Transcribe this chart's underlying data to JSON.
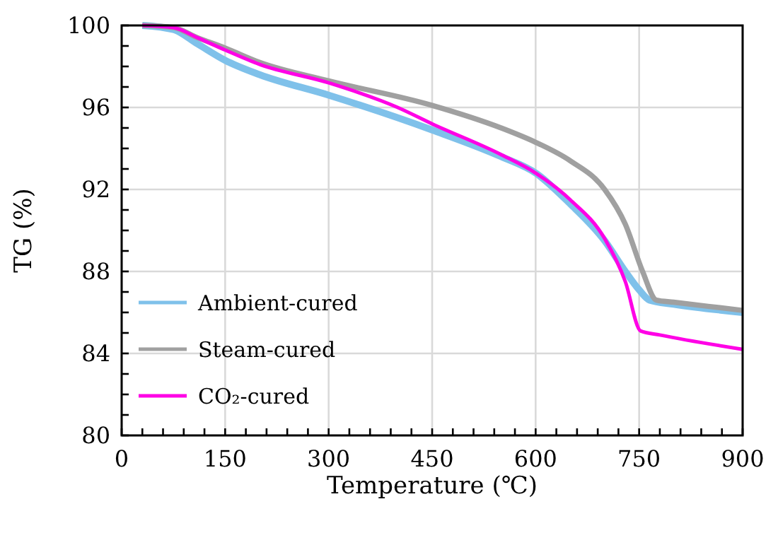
{
  "chart_data": {
    "type": "line",
    "xlabel": "Temperature (℃)",
    "ylabel": "TG (%)",
    "xlim": [
      0,
      900
    ],
    "ylim": [
      80,
      100
    ],
    "xticks": [
      0,
      {
        "value": 30,
        "label": null
      },
      {
        "value": 60,
        "label": null
      },
      {
        "value": 90,
        "label": null
      },
      {
        "value": 120,
        "label": null
      },
      150,
      {
        "value": 180,
        "label": null
      },
      {
        "value": 210,
        "label": null
      },
      {
        "value": 240,
        "label": null
      },
      {
        "value": 270,
        "label": null
      },
      300,
      {
        "value": 330,
        "label": null
      },
      {
        "value": 360,
        "label": null
      },
      {
        "value": 390,
        "label": null
      },
      {
        "value": 420,
        "label": null
      },
      450,
      {
        "value": 480,
        "label": null
      },
      {
        "value": 510,
        "label": null
      },
      {
        "value": 540,
        "label": null
      },
      {
        "value": 570,
        "label": null
      },
      600,
      {
        "value": 630,
        "label": null
      },
      {
        "value": 660,
        "label": null
      },
      {
        "value": 690,
        "label": null
      },
      {
        "value": 720,
        "label": null
      },
      750,
      {
        "value": 780,
        "label": null
      },
      {
        "value": 810,
        "label": null
      },
      {
        "value": 840,
        "label": null
      },
      {
        "value": 870,
        "label": null
      },
      900
    ],
    "yticks": [
      80,
      {
        "value": 81,
        "label": null
      },
      {
        "value": 82,
        "label": null
      },
      {
        "value": 83,
        "label": null
      },
      84,
      {
        "value": 85,
        "label": null
      },
      {
        "value": 86,
        "label": null
      },
      {
        "value": 87,
        "label": null
      },
      88,
      {
        "value": 89,
        "label": null
      },
      {
        "value": 90,
        "label": null
      },
      {
        "value": 91,
        "label": null
      },
      92,
      {
        "value": 93,
        "label": null
      },
      {
        "value": 94,
        "label": null
      },
      {
        "value": 95,
        "label": null
      },
      96,
      {
        "value": 97,
        "label": null
      },
      {
        "value": 98,
        "label": null
      },
      {
        "value": 99,
        "label": null
      },
      100
    ],
    "grid": true,
    "legend": "bottom left",
    "marker": "none",
    "line_style": "solid",
    "series": [
      {
        "name": "Ambient-cured",
        "color": "#7fc1ea",
        "x": [
          30,
          75,
          110,
          150,
          200,
          300,
          450,
          550,
          600,
          650,
          700,
          730,
          750,
          765,
          800,
          900
        ],
        "values": [
          100,
          99.8,
          99.1,
          98.3,
          97.6,
          96.6,
          94.9,
          93.6,
          92.8,
          91.3,
          89.5,
          88,
          87.1,
          86.6,
          86.4,
          86.0
        ]
      },
      {
        "name": "Steam-cured",
        "color": "#a0a0a0",
        "x": [
          30,
          75,
          110,
          150,
          200,
          300,
          450,
          550,
          600,
          650,
          700,
          730,
          755,
          775,
          800,
          900
        ],
        "values": [
          100,
          99.9,
          99.4,
          98.9,
          98.2,
          97.3,
          96.1,
          95.0,
          94.3,
          93.4,
          92.0,
          90.3,
          88.0,
          86.6,
          86.5,
          86.1
        ]
      },
      {
        "name": "CO₂-cured",
        "color": "#ff00e6",
        "x": [
          30,
          75,
          110,
          150,
          200,
          300,
          400,
          450,
          550,
          600,
          650,
          700,
          730,
          752,
          780,
          900
        ],
        "values": [
          100,
          99.9,
          99.4,
          98.8,
          98.1,
          97.2,
          96.0,
          95.2,
          93.7,
          92.8,
          91.5,
          89.6,
          87.5,
          85.1,
          84.9,
          84.2
        ]
      }
    ]
  }
}
